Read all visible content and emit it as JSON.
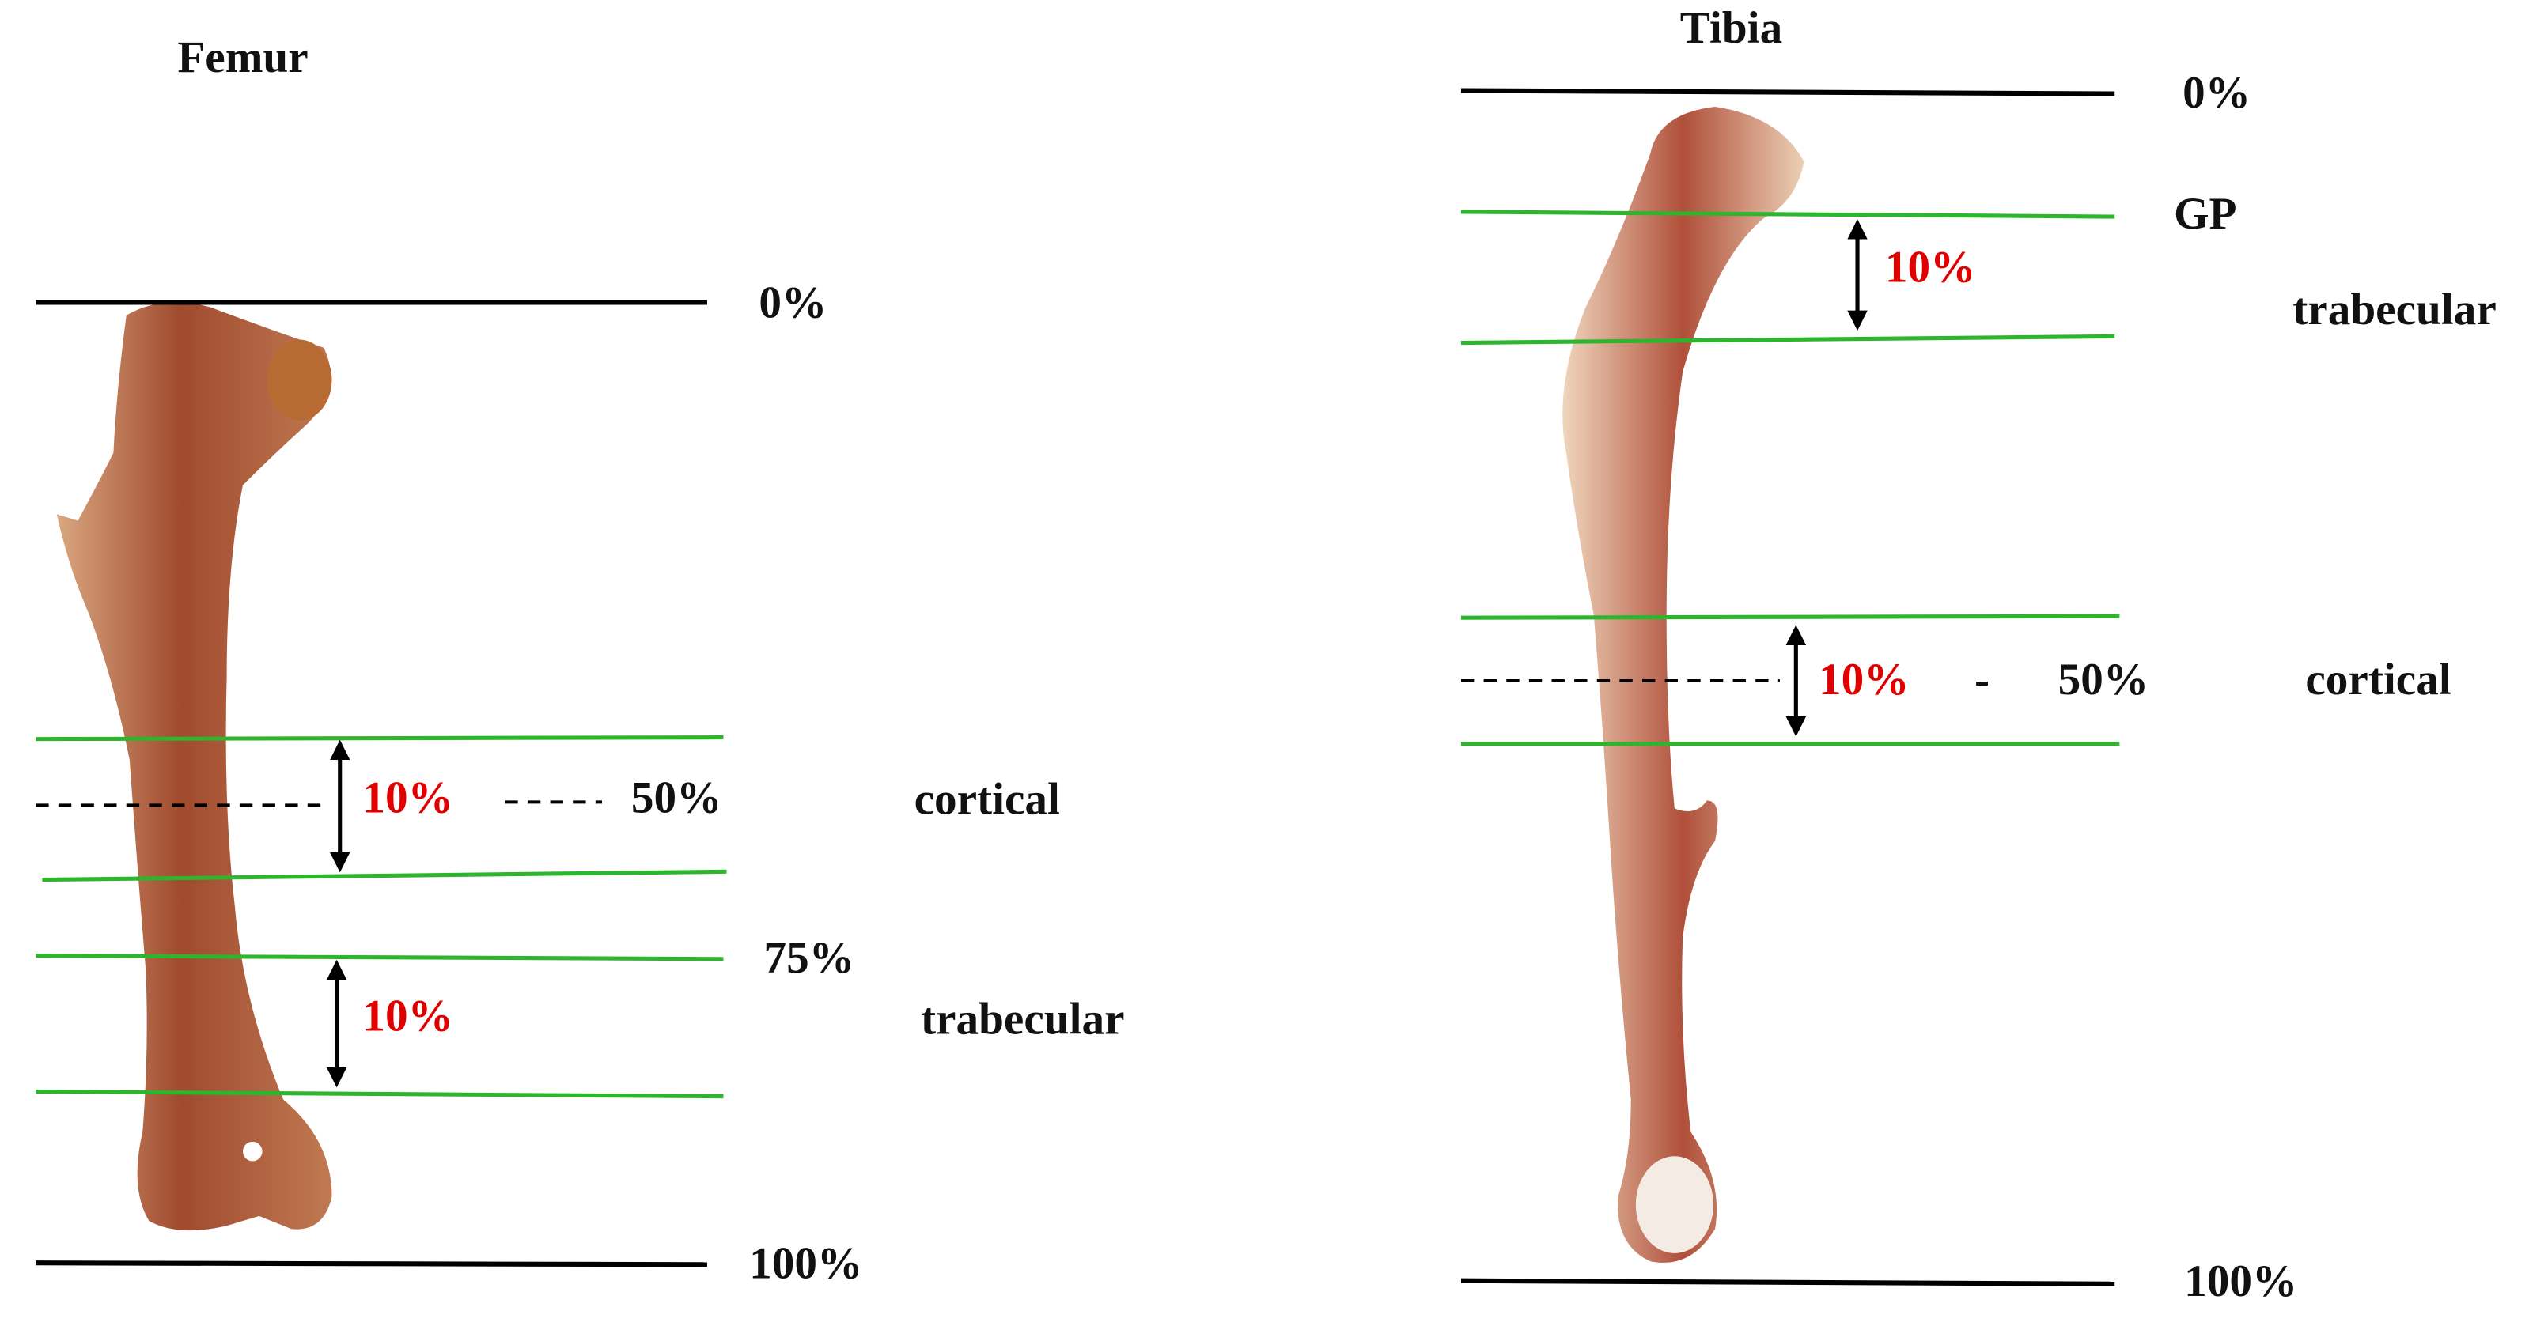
{
  "femur": {
    "title": "Femur",
    "top": "0%",
    "bottom": "100%",
    "mid": "50%",
    "distal": "75%",
    "cortical": "cortical",
    "trabecular": "trabecular",
    "cortical_width": "10%",
    "trabecular_width": "10%"
  },
  "tibia": {
    "title": "Tibia",
    "top": "0%",
    "bottom": "100%",
    "gp": "GP",
    "trabecular": "trabecular",
    "trabecular_width": "10%",
    "cortical_width": "10%",
    "dash": "-",
    "mid": "50%",
    "cortical": "cortical"
  }
}
